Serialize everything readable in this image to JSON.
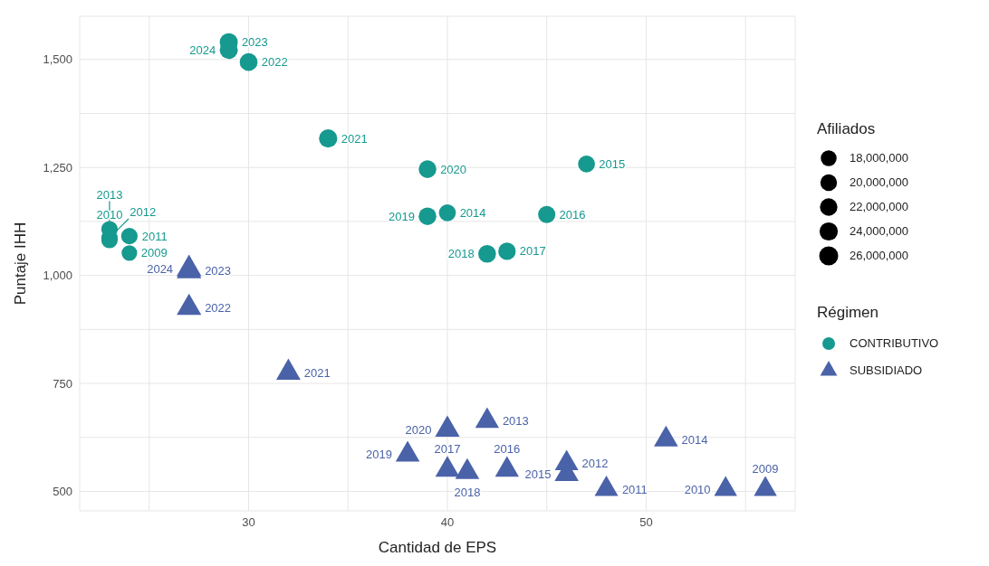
{
  "chart_data": {
    "type": "bubble",
    "xlabel": "Cantidad de EPS",
    "ylabel": "Puntaje IHH",
    "legend": "right",
    "grid": true,
    "xlim": [
      21.5,
      57.5
    ],
    "xticks": [
      {
        "value": 25,
        "label": null
      },
      30,
      {
        "value": 35,
        "label": null
      },
      40,
      {
        "value": 45,
        "label": null
      },
      50,
      {
        "value": 55,
        "label": null
      }
    ],
    "ylim": [
      455,
      1600
    ],
    "yticks": [
      {
        "value": 500,
        "label": "500"
      },
      {
        "value": 625,
        "label": null
      },
      {
        "value": 750,
        "label": "750"
      },
      {
        "value": 875,
        "label": null
      },
      {
        "value": 1000,
        "label": "1,000"
      },
      {
        "value": 1125,
        "label": null
      },
      {
        "value": 1250,
        "label": "1,250"
      },
      {
        "value": 1375,
        "label": null
      },
      {
        "value": 1500,
        "label": "1,500"
      }
    ],
    "size_legend": [
      {
        "value": 18000000,
        "label": "18,000,000"
      },
      {
        "value": 20000000,
        "label": "20,000,000"
      },
      {
        "value": 22000000,
        "label": "22,000,000"
      },
      {
        "value": 24000000,
        "label": "24,000,000"
      },
      {
        "value": 26000000,
        "label": "26,000,000"
      }
    ],
    "legend_title": "Régimen",
    "series": [
      {
        "name": "CONTRIBUTIVO",
        "color": "#16998f",
        "marker": "circle",
        "x": [
          24,
          23,
          24,
          23,
          23,
          40,
          47,
          45,
          43,
          42,
          39,
          39,
          34,
          30,
          29,
          29
        ],
        "values": [
          1052,
          1082,
          1091,
          1087,
          1107,
          1145,
          1258,
          1141,
          1056,
          1050,
          1137,
          1246,
          1317,
          1494,
          1540,
          1522
        ],
        "sizes": [
          17500000,
          19500000,
          19500000,
          19500000,
          19500000,
          20500000,
          20500000,
          21500000,
          22000000,
          22500000,
          22500000,
          22500000,
          24000000,
          23000000,
          23500000,
          23500000
        ]
      },
      {
        "name": "SUBSIDIADO",
        "color": "#4a62a8",
        "marker": "triangle",
        "x": [
          56,
          54,
          48,
          46,
          42,
          51,
          46,
          43,
          40,
          41,
          38,
          40,
          32,
          27,
          27,
          27
        ],
        "values": [
          505,
          505,
          505,
          565,
          663,
          620,
          540,
          550,
          550,
          545,
          585,
          643,
          775,
          925,
          1010,
          1015
        ],
        "sizes": [
          21000000,
          21000000,
          22000000,
          22000000,
          22500000,
          23000000,
          23000000,
          22500000,
          23000000,
          23000000,
          23000000,
          24000000,
          23500000,
          24000000,
          24000000,
          24500000
        ]
      }
    ],
    "annotations": [
      "Afiliados",
      {
        "text": "2009",
        "x": 24,
        "y": 1052
      },
      {
        "text": "2010",
        "x": 23,
        "y": 1082
      },
      {
        "text": "2011",
        "x": 24,
        "y": 1091
      },
      {
        "text": "2012",
        "x": 23,
        "y": 1087
      },
      {
        "text": "2013",
        "x": 23,
        "y": 1107
      },
      {
        "text": "2014",
        "x": 40,
        "y": 1145
      },
      {
        "text": "2015",
        "x": 47,
        "y": 1258
      },
      {
        "text": "2016",
        "x": 45,
        "y": 1141
      },
      {
        "text": "2017",
        "x": 43,
        "y": 1056
      },
      {
        "text": "2018",
        "x": 42,
        "y": 1050
      },
      {
        "text": "2019",
        "x": 39,
        "y": 1137
      },
      {
        "text": "2020",
        "x": 39,
        "y": 1246
      },
      {
        "text": "2021",
        "x": 34,
        "y": 1317
      },
      {
        "text": "2022",
        "x": 30,
        "y": 1494
      },
      {
        "text": "2023",
        "x": 29,
        "y": 1540
      },
      {
        "text": "2024",
        "x": 29,
        "y": 1522
      },
      {
        "text": "2009",
        "x": 56,
        "y": 505
      },
      {
        "text": "2010",
        "x": 54,
        "y": 505
      },
      {
        "text": "2011",
        "x": 48,
        "y": 505
      },
      {
        "text": "2012",
        "x": 46,
        "y": 565
      },
      {
        "text": "2013",
        "x": 42,
        "y": 663
      },
      {
        "text": "2014",
        "x": 51,
        "y": 620
      },
      {
        "text": "2015",
        "x": 46,
        "y": 540
      },
      {
        "text": "2016",
        "x": 43,
        "y": 550
      },
      {
        "text": "2017",
        "x": 40,
        "y": 550
      },
      {
        "text": "2018",
        "x": 41,
        "y": 545
      },
      {
        "text": "2019",
        "x": 38,
        "y": 585
      },
      {
        "text": "2020",
        "x": 40,
        "y": 643
      },
      {
        "text": "2021",
        "x": 32,
        "y": 775
      },
      {
        "text": "2022",
        "x": 27,
        "y": 925
      },
      {
        "text": "2023",
        "x": 27,
        "y": 1010
      },
      {
        "text": "2024",
        "x": 27,
        "y": 1015
      }
    ]
  }
}
